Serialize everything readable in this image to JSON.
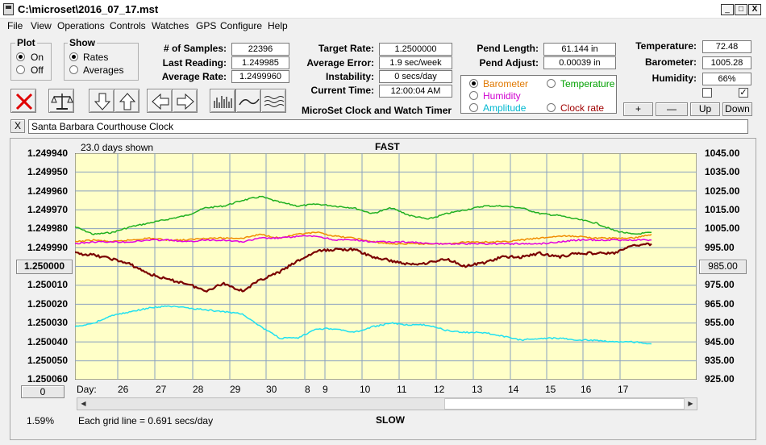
{
  "window": {
    "title": "C:\\microset\\2016_07_17.mst",
    "min": "_",
    "max": "□",
    "close": "X"
  },
  "menu": [
    "File",
    "View",
    "Operations",
    "Controls",
    "Watches",
    "GPS",
    "Configure",
    "Help"
  ],
  "plot_group": {
    "title": "Plot",
    "on": "On",
    "off": "Off",
    "selected": "On"
  },
  "show_group": {
    "title": "Show",
    "rates": "Rates",
    "averages": "Averages",
    "selected": "Rates"
  },
  "stats": {
    "samples_label": "# of Samples:",
    "samples": "22396",
    "last_label": "Last Reading:",
    "last": "1.249985",
    "avg_label": "Average Rate:",
    "avg": "1.2499960"
  },
  "rates": {
    "target_label": "Target Rate:",
    "target": "1.2500000",
    "error_label": "Average Error:",
    "error": "1.9 sec/week",
    "instab_label": "Instability:",
    "instab": "0 secs/day",
    "time_label": "Current Time:",
    "time": "12:00:04 AM"
  },
  "pend": {
    "length_label": "Pend Length:",
    "length": "61.144 in",
    "adjust_label": "Pend Adjust:",
    "adjust": "0.00039 in"
  },
  "env": {
    "temp_label": "Temperature:",
    "temp": "72.48",
    "baro_label": "Barometer:",
    "baro": "1005.28",
    "hum_label": "Humidity:",
    "hum": "66%"
  },
  "overlay": {
    "barometer": "Barometer",
    "temperature": "Temperature",
    "humidity": "Humidity",
    "amplitude": "Amplitude",
    "clock_rate": "Clock rate",
    "selected": "barometer",
    "colors": {
      "barometer": "#e07800",
      "temperature": "#00a000",
      "humidity": "#d000d0",
      "amplitude": "#00b8d0",
      "clock_rate": "#a00000"
    }
  },
  "axis_buttons": {
    "plus": "+",
    "minus": "—",
    "up": "Up",
    "down": "Down"
  },
  "checks": {
    "first": false,
    "second": true
  },
  "app_caption": "MicroSet Clock and Watch Timer",
  "clock_name": "Santa Barbara Courthouse Clock",
  "close_name": "X",
  "chart_data": {
    "type": "line",
    "days_shown": "23.0 days shown",
    "top_label": "FAST",
    "bottom_label": "SLOW",
    "grid_note": "Each grid line = 0.691 secs/day",
    "percent": "1.59%",
    "x_label": "Day:",
    "x_ticks": [
      "26",
      "27",
      "28",
      "29",
      "30",
      "8",
      "9",
      "10",
      "11",
      "12",
      "13",
      "14",
      "15",
      "16",
      "17"
    ],
    "y_left": [
      "1.249940",
      "1.249950",
      "1.249960",
      "1.249970",
      "1.249980",
      "1.249990",
      "1.250000",
      "1.250010",
      "1.250020",
      "1.250030",
      "1.250040",
      "1.250050",
      "1.250060"
    ],
    "y_left_center_button": "1.250000",
    "y_left_bottom_button": "0",
    "y_right": [
      "1045.00",
      "1035.00",
      "1025.00",
      "1015.00",
      "1005.00",
      "995.00",
      "985.00",
      "975.00",
      "965.00",
      "955.00",
      "945.00",
      "935.00",
      "925.00"
    ],
    "y_right_center_button": "985.00",
    "grid": true,
    "background": "#ffffc8",
    "series": [
      {
        "key": "temperature",
        "color": "#20b020",
        "width": 1.5,
        "values": [
          1.249979,
          1.249983,
          1.249982,
          1.249979,
          1.249977,
          1.249975,
          1.249973,
          1.249969,
          1.249968,
          1.249965,
          1.249963,
          1.249966,
          1.249968,
          1.249967,
          1.249968,
          1.249969,
          1.249972,
          1.249969,
          1.249973,
          1.249975,
          1.249972,
          1.24997,
          1.249968,
          1.249968,
          1.249969,
          1.249972,
          1.249973,
          1.249975,
          1.249977,
          1.249981,
          1.249983,
          1.249982
        ]
      },
      {
        "key": "barometer",
        "color": "#f08c00",
        "width": 1.5,
        "values": [
          1.249987,
          1.249986,
          1.249987,
          1.249986,
          1.249985,
          1.249986,
          1.249986,
          1.249985,
          1.249985,
          1.249985,
          1.249983,
          1.249985,
          1.249983,
          1.249982,
          1.249984,
          1.249985,
          1.249987,
          1.249988,
          1.249988,
          1.249988,
          1.249988,
          1.249987,
          1.249987,
          1.249987,
          1.249986,
          1.249985,
          1.249984,
          1.249984,
          1.249985,
          1.249985,
          1.249985,
          1.249983
        ]
      },
      {
        "key": "humidity",
        "color": "#e000e0",
        "width": 1.5,
        "values": [
          1.249988,
          1.249987,
          1.249987,
          1.249987,
          1.249986,
          1.249986,
          1.249987,
          1.249986,
          1.249986,
          1.249987,
          1.249985,
          1.249985,
          1.249984,
          1.249984,
          1.249986,
          1.249986,
          1.249987,
          1.249987,
          1.249987,
          1.249988,
          1.249988,
          1.249988,
          1.249988,
          1.249988,
          1.249988,
          1.249988,
          1.249987,
          1.249986,
          1.249986,
          1.249986,
          1.249986,
          1.249986
        ]
      },
      {
        "key": "clock_rate",
        "color": "#7a0000",
        "width": 2.2,
        "values": [
          1.249993,
          1.249994,
          1.249996,
          1.249999,
          1.250004,
          1.250007,
          1.250009,
          1.250013,
          1.250009,
          1.250013,
          1.250007,
          1.250003,
          1.249997,
          1.249992,
          1.249991,
          1.249991,
          1.249995,
          1.249997,
          1.249999,
          1.249998,
          1.249996,
          1.25,
          1.249998,
          1.249995,
          1.249995,
          1.249993,
          1.249995,
          1.249993,
          1.249993,
          1.249993,
          1.249989,
          1.249988
        ]
      },
      {
        "key": "amplitude",
        "color": "#20e0f0",
        "width": 1.5,
        "values": [
          1.250032,
          1.25003,
          1.250026,
          1.250024,
          1.250022,
          1.250021,
          1.250022,
          1.250023,
          1.250024,
          1.250025,
          1.250032,
          1.250038,
          1.250038,
          1.250033,
          1.250033,
          1.250035,
          1.250032,
          1.25003,
          1.250031,
          1.250031,
          1.250034,
          1.250035,
          1.250035,
          1.250037,
          1.250039,
          1.250038,
          1.250038,
          1.250039,
          1.250039,
          1.25004,
          1.25004,
          1.250041
        ]
      }
    ]
  }
}
